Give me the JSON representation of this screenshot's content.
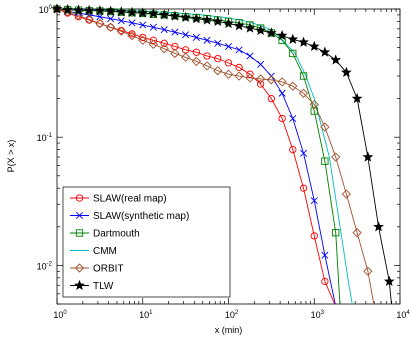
{
  "chart_data": {
    "type": "line",
    "title": "",
    "xlabel": "x (min)",
    "ylabel": "P(X > x)",
    "xscale": "log",
    "yscale": "log",
    "xlim": [
      1,
      10000
    ],
    "ylim": [
      0.005,
      1
    ],
    "grid": false,
    "legend_position": "bottom-left",
    "x_ticks": [
      {
        "base": "10",
        "exp": "0"
      },
      {
        "base": "10",
        "exp": "1"
      },
      {
        "base": "10",
        "exp": "2"
      },
      {
        "base": "10",
        "exp": "3"
      },
      {
        "base": "10",
        "exp": "4"
      }
    ],
    "y_ticks": [
      {
        "base": "10",
        "exp": "0"
      },
      {
        "base": "10",
        "exp": "-1"
      },
      {
        "base": "10",
        "exp": "-2"
      }
    ],
    "series": [
      {
        "name": "SLAW(real map)",
        "color": "#ff0000",
        "marker": "circle",
        "x": [
          1,
          1.33,
          1.78,
          2.37,
          3.16,
          4.22,
          5.62,
          7.5,
          10,
          13.3,
          17.8,
          23.7,
          31.6,
          42.2,
          56.2,
          75,
          100,
          133,
          178,
          237,
          316,
          422,
          562,
          750,
          1000,
          1330,
          1780
        ],
        "y": [
          1,
          0.93,
          0.87,
          0.82,
          0.77,
          0.72,
          0.68,
          0.64,
          0.6,
          0.57,
          0.54,
          0.51,
          0.48,
          0.46,
          0.43,
          0.41,
          0.38,
          0.35,
          0.31,
          0.26,
          0.2,
          0.14,
          0.08,
          0.04,
          0.017,
          0.0075,
          0.0048
        ]
      },
      {
        "name": "SLAW(synthetic map)",
        "color": "#0000ff",
        "marker": "x",
        "x": [
          1,
          1.33,
          1.78,
          2.37,
          3.16,
          4.22,
          5.62,
          7.5,
          10,
          13.3,
          17.8,
          23.7,
          31.6,
          42.2,
          56.2,
          75,
          100,
          133,
          178,
          237,
          316,
          422,
          562,
          750,
          1000,
          1330,
          1780
        ],
        "y": [
          1,
          0.96,
          0.93,
          0.9,
          0.87,
          0.84,
          0.81,
          0.78,
          0.75,
          0.72,
          0.69,
          0.66,
          0.63,
          0.6,
          0.57,
          0.54,
          0.51,
          0.48,
          0.43,
          0.37,
          0.3,
          0.22,
          0.14,
          0.075,
          0.032,
          0.012,
          0.0048
        ]
      },
      {
        "name": "Dartmouth",
        "color": "#008000",
        "marker": "square",
        "x": [
          1,
          1.33,
          1.78,
          2.37,
          3.16,
          4.22,
          5.62,
          7.5,
          10,
          13.3,
          17.8,
          23.7,
          31.6,
          42.2,
          56.2,
          75,
          100,
          133,
          178,
          237,
          316,
          422,
          562,
          750,
          1000,
          1330,
          1780,
          2000
        ],
        "y": [
          1,
          0.99,
          0.98,
          0.97,
          0.965,
          0.955,
          0.945,
          0.935,
          0.925,
          0.91,
          0.9,
          0.885,
          0.87,
          0.855,
          0.84,
          0.82,
          0.8,
          0.78,
          0.75,
          0.71,
          0.65,
          0.57,
          0.45,
          0.3,
          0.16,
          0.065,
          0.018,
          0.0048
        ]
      },
      {
        "name": "CMM",
        "color": "#00bfbf",
        "marker": "none",
        "x": [
          1,
          2,
          5,
          10,
          20,
          50,
          100,
          150,
          200,
          300,
          400,
          600,
          800,
          1000,
          1500,
          2000,
          2500,
          2800
        ],
        "y": [
          1,
          0.99,
          0.98,
          0.96,
          0.94,
          0.9,
          0.85,
          0.81,
          0.77,
          0.7,
          0.6,
          0.45,
          0.3,
          0.2,
          0.07,
          0.02,
          0.0075,
          0.0048
        ]
      },
      {
        "name": "ORBIT",
        "color": "#a0522d",
        "marker": "diamond",
        "x": [
          1,
          1.33,
          1.78,
          2.37,
          3.16,
          4.22,
          5.62,
          7.5,
          10,
          13.3,
          17.8,
          23.7,
          31.6,
          42.2,
          56.2,
          75,
          100,
          133,
          178,
          237,
          316,
          422,
          562,
          750,
          1000,
          1330,
          1780,
          2370,
          3160,
          4220,
          5000
        ],
        "y": [
          1,
          0.95,
          0.89,
          0.83,
          0.77,
          0.72,
          0.67,
          0.62,
          0.57,
          0.53,
          0.49,
          0.45,
          0.42,
          0.39,
          0.36,
          0.33,
          0.31,
          0.3,
          0.29,
          0.285,
          0.28,
          0.27,
          0.25,
          0.22,
          0.18,
          0.12,
          0.07,
          0.036,
          0.018,
          0.009,
          0.0048
        ]
      },
      {
        "name": "TLW",
        "color": "#000000",
        "marker": "star",
        "x": [
          1,
          1.33,
          1.78,
          2.37,
          3.16,
          4.22,
          5.62,
          7.5,
          10,
          13.3,
          17.8,
          23.7,
          31.6,
          42.2,
          56.2,
          75,
          100,
          133,
          178,
          237,
          316,
          422,
          562,
          750,
          1000,
          1330,
          1780,
          2370,
          3160,
          4220,
          5620,
          7500,
          8000
        ],
        "y": [
          1,
          0.99,
          0.98,
          0.975,
          0.97,
          0.96,
          0.95,
          0.94,
          0.93,
          0.92,
          0.9,
          0.88,
          0.86,
          0.84,
          0.82,
          0.8,
          0.77,
          0.74,
          0.71,
          0.68,
          0.65,
          0.62,
          0.58,
          0.55,
          0.51,
          0.46,
          0.4,
          0.32,
          0.2,
          0.07,
          0.02,
          0.0075,
          0.0048
        ]
      }
    ]
  }
}
